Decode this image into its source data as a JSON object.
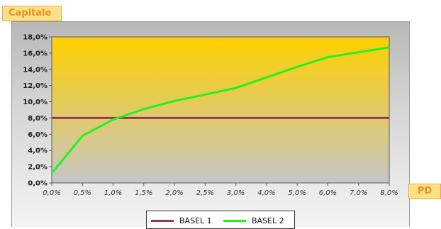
{
  "axis_tags": {
    "y_title": "Capitale",
    "x_title": "PD"
  },
  "colors": {
    "basel1": "#9a3462",
    "basel2": "#1ef51e",
    "plot_top": "#ffd000",
    "plot_bottom": "#c6c6c6",
    "tag_fill": "#ffe08a",
    "tag_text": "#e8911a"
  },
  "chart_data": {
    "type": "line",
    "x_tick_labels": [
      "0,0%",
      "0,5%",
      "1,0%",
      "1,5%",
      "2,0%",
      "2,5%",
      "3,0%",
      "4,0%",
      "5,0%",
      "6,0%",
      "7,0%",
      "8,0%"
    ],
    "y_tick_labels": [
      "0,0%",
      "2,0%",
      "4,0%",
      "6,0%",
      "8,0%",
      "10,0%",
      "12,0%",
      "14,0%",
      "16,0%",
      "18,0%"
    ],
    "ylim": [
      0,
      18
    ],
    "grid": false,
    "legend_position": "bottom",
    "series": [
      {
        "name": "BASEL 1",
        "values": [
          8.0,
          8.0,
          8.0,
          8.0,
          8.0,
          8.0,
          8.0,
          8.0,
          8.0,
          8.0,
          8.0,
          8.0
        ]
      },
      {
        "name": "BASEL 2",
        "values": [
          1.2,
          5.8,
          7.8,
          9.1,
          10.1,
          10.9,
          11.7,
          13.0,
          14.3,
          15.5,
          16.1,
          16.7
        ]
      }
    ]
  }
}
